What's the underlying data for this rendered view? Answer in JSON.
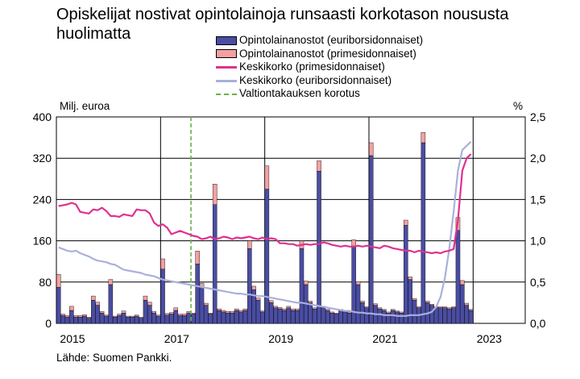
{
  "title": "Opiskelijat nostivat opintolainoja runsaasti korkotason noususta huolimatta",
  "source": "Lähde: Suomen Pankki.",
  "colors": {
    "euribor_bars": "#4a4da3",
    "prime_bars": "#f4a0a0",
    "prime_rate": "#e03090",
    "euribor_rate": "#aab0da",
    "guarantee_line": "#6ab04c"
  },
  "chart_data": {
    "type": "bar",
    "title": "Opiskelijat nostivat opintolainoja runsaasti korkotason noususta huolimatta",
    "y_left_label": "Milj. euroa",
    "y_right_label": "%",
    "y_left_range": [
      0,
      400
    ],
    "y_left_ticks": [
      "0",
      "80",
      "160",
      "240",
      "320",
      "400"
    ],
    "y_right_range": [
      0,
      2.5
    ],
    "y_right_ticks": [
      "0,0",
      "0,5",
      "1,0",
      "1,5",
      "2,0",
      "2,5"
    ],
    "x_range": [
      "2015-01",
      "2023-12"
    ],
    "x_tick_labels": [
      "2015",
      "2017",
      "2019",
      "2021",
      "2023"
    ],
    "x_tick_dates": [
      "2015-01",
      "2017-01",
      "2019-01",
      "2021-01",
      "2023-01"
    ],
    "x_grid_dates": [
      "2015-01",
      "2017-01",
      "2019-01",
      "2021-01",
      "2023-01"
    ],
    "grid": true,
    "legend_position": "top",
    "guarantee_date": "2017-08",
    "stacked": true,
    "legend": [
      {
        "key": "euribor_bars",
        "kind": "bar",
        "label": "Opintolainanostot (euriborsidonnaiset)"
      },
      {
        "key": "prime_bars",
        "kind": "bar",
        "label": "Opintolainanostot (primesidonnaiset)"
      },
      {
        "key": "prime_rate",
        "kind": "line",
        "label": "Keskikorko (primesidonnaiset)"
      },
      {
        "key": "euribor_rate",
        "kind": "line",
        "label": "Keskikorko (euriborsidonnaiset)"
      },
      {
        "key": "guarantee_line",
        "kind": "dash",
        "label": "Valtiontakauksen korotus"
      }
    ],
    "months": [
      "2015-01",
      "2015-02",
      "2015-03",
      "2015-04",
      "2015-05",
      "2015-06",
      "2015-07",
      "2015-08",
      "2015-09",
      "2015-10",
      "2015-11",
      "2015-12",
      "2016-01",
      "2016-02",
      "2016-03",
      "2016-04",
      "2016-05",
      "2016-06",
      "2016-07",
      "2016-08",
      "2016-09",
      "2016-10",
      "2016-11",
      "2016-12",
      "2017-01",
      "2017-02",
      "2017-03",
      "2017-04",
      "2017-05",
      "2017-06",
      "2017-07",
      "2017-08",
      "2017-09",
      "2017-10",
      "2017-11",
      "2017-12",
      "2018-01",
      "2018-02",
      "2018-03",
      "2018-04",
      "2018-05",
      "2018-06",
      "2018-07",
      "2018-08",
      "2018-09",
      "2018-10",
      "2018-11",
      "2018-12",
      "2019-01",
      "2019-02",
      "2019-03",
      "2019-04",
      "2019-05",
      "2019-06",
      "2019-07",
      "2019-08",
      "2019-09",
      "2019-10",
      "2019-11",
      "2019-12",
      "2020-01",
      "2020-02",
      "2020-03",
      "2020-04",
      "2020-05",
      "2020-06",
      "2020-07",
      "2020-08",
      "2020-09",
      "2020-10",
      "2020-11",
      "2020-12",
      "2021-01",
      "2021-02",
      "2021-03",
      "2021-04",
      "2021-05",
      "2021-06",
      "2021-07",
      "2021-08",
      "2021-09",
      "2021-10",
      "2021-11",
      "2021-12",
      "2022-01",
      "2022-02",
      "2022-03",
      "2022-04",
      "2022-05",
      "2022-06",
      "2022-07",
      "2022-08",
      "2022-09",
      "2022-10",
      "2022-11",
      "2022-12"
    ],
    "series": [
      {
        "key": "euribor_bars",
        "name": "Opintolainanostot (euriborsidonnaiset)",
        "axis": "left",
        "values": [
          70,
          15,
          12,
          25,
          12,
          12,
          14,
          10,
          45,
          35,
          20,
          14,
          75,
          12,
          15,
          20,
          12,
          12,
          14,
          10,
          45,
          35,
          20,
          14,
          105,
          16,
          18,
          25,
          15,
          15,
          20,
          18,
          115,
          70,
          35,
          18,
          230,
          25,
          22,
          20,
          20,
          25,
          22,
          25,
          145,
          65,
          45,
          22,
          260,
          40,
          30,
          28,
          25,
          30,
          25,
          25,
          145,
          75,
          40,
          28,
          295,
          30,
          25,
          20,
          18,
          25,
          22,
          20,
          150,
          75,
          40,
          30,
          325,
          35,
          28,
          25,
          20,
          25,
          22,
          20,
          190,
          85,
          45,
          30,
          350,
          40,
          35,
          30,
          30,
          30,
          28,
          30,
          180,
          75,
          35,
          25
        ]
      },
      {
        "key": "prime_bars",
        "name": "Opintolainanostot (primesidonnaiset)",
        "axis": "left",
        "values": [
          25,
          3,
          3,
          8,
          3,
          3,
          3,
          2,
          8,
          6,
          3,
          2,
          10,
          2,
          3,
          4,
          2,
          2,
          2,
          2,
          8,
          6,
          3,
          2,
          20,
          3,
          3,
          5,
          3,
          3,
          3,
          2,
          25,
          8,
          4,
          2,
          40,
          3,
          3,
          3,
          3,
          3,
          3,
          3,
          15,
          7,
          4,
          2,
          45,
          4,
          3,
          3,
          3,
          3,
          3,
          3,
          15,
          7,
          3,
          2,
          20,
          3,
          2,
          2,
          2,
          2,
          2,
          2,
          12,
          6,
          3,
          2,
          25,
          3,
          2,
          2,
          2,
          2,
          2,
          2,
          10,
          5,
          3,
          2,
          20,
          3,
          2,
          2,
          2,
          2,
          2,
          2,
          25,
          8,
          4,
          2
        ]
      },
      {
        "key": "prime_rate",
        "name": "Keskikorko (primesidonnaiset)",
        "axis": "right",
        "values": [
          1.42,
          1.43,
          1.44,
          1.46,
          1.44,
          1.35,
          1.34,
          1.33,
          1.38,
          1.37,
          1.4,
          1.36,
          1.3,
          1.3,
          1.29,
          1.32,
          1.31,
          1.3,
          1.38,
          1.37,
          1.37,
          1.33,
          1.22,
          1.18,
          1.2,
          1.16,
          1.08,
          1.1,
          1.12,
          1.1,
          1.08,
          1.06,
          1.05,
          1.02,
          1.03,
          1.05,
          1.02,
          1.03,
          1.05,
          1.04,
          1.02,
          1.04,
          1.03,
          1.04,
          1.05,
          1.03,
          1.02,
          1.04,
          1.02,
          1.03,
          1.02,
          0.97,
          0.97,
          0.96,
          0.96,
          0.94,
          0.95,
          0.96,
          0.95,
          0.96,
          0.96,
          0.98,
          0.97,
          0.95,
          0.94,
          0.93,
          0.94,
          0.93,
          0.93,
          0.94,
          0.93,
          0.94,
          0.93,
          0.92,
          0.91,
          0.94,
          0.93,
          0.91,
          0.9,
          0.89,
          0.88,
          0.88,
          0.86,
          0.88,
          0.87,
          0.86,
          0.85,
          0.86,
          0.85,
          0.87,
          0.88,
          0.9,
          1.25,
          1.85,
          2.0,
          2.05
        ]
      },
      {
        "key": "euribor_rate",
        "name": "Keskikorko (euriborsidonnaiset)",
        "axis": "right",
        "values": [
          0.92,
          0.9,
          0.88,
          0.87,
          0.88,
          0.85,
          0.83,
          0.81,
          0.78,
          0.76,
          0.75,
          0.74,
          0.72,
          0.71,
          0.68,
          0.65,
          0.64,
          0.63,
          0.62,
          0.61,
          0.59,
          0.58,
          0.57,
          0.55,
          0.53,
          0.52,
          0.51,
          0.5,
          0.49,
          0.48,
          0.47,
          0.46,
          0.45,
          0.44,
          0.43,
          0.42,
          0.41,
          0.4,
          0.39,
          0.38,
          0.37,
          0.36,
          0.36,
          0.35,
          0.35,
          0.34,
          0.33,
          0.33,
          0.32,
          0.31,
          0.3,
          0.29,
          0.28,
          0.27,
          0.26,
          0.25,
          0.25,
          0.24,
          0.23,
          0.22,
          0.21,
          0.2,
          0.19,
          0.18,
          0.17,
          0.16,
          0.15,
          0.15,
          0.14,
          0.13,
          0.13,
          0.12,
          0.12,
          0.11,
          0.11,
          0.1,
          0.1,
          0.1,
          0.09,
          0.09,
          0.09,
          0.1,
          0.1,
          0.1,
          0.11,
          0.12,
          0.14,
          0.2,
          0.32,
          0.55,
          0.9,
          1.35,
          1.85,
          2.1,
          2.15,
          2.2
        ]
      }
    ]
  }
}
